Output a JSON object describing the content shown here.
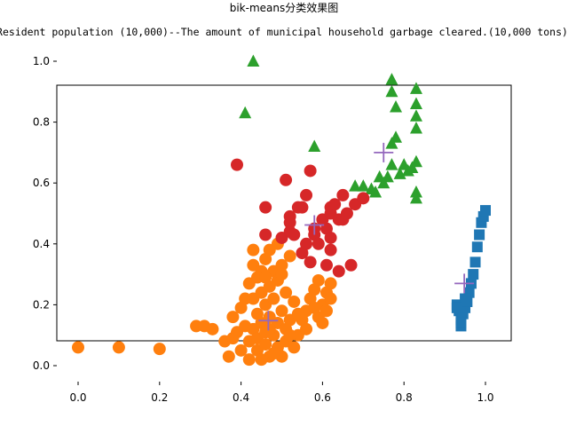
{
  "chart_data": {
    "type": "scatter",
    "title": "bik-means分类效果图",
    "subtitle": "Resident population (10,000)--The amount of municipal household garbage cleared.(10,000 tons)",
    "xlabel": "",
    "ylabel": "",
    "xlim": [
      -0.05,
      1.06
    ],
    "ylim": [
      -0.05,
      1.03
    ],
    "xticks": [
      "0.0",
      "0.2",
      "0.4",
      "0.6",
      "0.8",
      "1.0"
    ],
    "yticks": [
      "0.0",
      "0.2",
      "0.4",
      "0.6",
      "0.8",
      "1.0"
    ],
    "grid": false,
    "colors": {
      "blue": "#1f77b4",
      "orange": "#ff7f0e",
      "green": "#2ca02c",
      "red": "#d62728",
      "centroid": "#9467bd"
    },
    "series": [
      {
        "marker": "square",
        "color": "#1f77b4",
        "points": [
          [
            0.93,
            0.2
          ],
          [
            0.935,
            0.18
          ],
          [
            0.94,
            0.13
          ],
          [
            0.94,
            0.15
          ],
          [
            0.945,
            0.17
          ],
          [
            0.95,
            0.19
          ],
          [
            0.955,
            0.21
          ],
          [
            0.96,
            0.24
          ],
          [
            0.965,
            0.27
          ],
          [
            0.97,
            0.3
          ],
          [
            0.975,
            0.34
          ],
          [
            0.98,
            0.39
          ],
          [
            0.985,
            0.43
          ],
          [
            0.99,
            0.47
          ],
          [
            0.995,
            0.49
          ],
          [
            1.0,
            0.51
          ],
          [
            0.95,
            0.22
          ],
          [
            0.94,
            0.14
          ],
          [
            0.93,
            0.19
          ]
        ]
      },
      {
        "marker": "circle",
        "color": "#ff7f0e",
        "points": [
          [
            0.0,
            0.06
          ],
          [
            0.1,
            0.06
          ],
          [
            0.2,
            0.055
          ],
          [
            0.29,
            0.13
          ],
          [
            0.31,
            0.13
          ],
          [
            0.33,
            0.12
          ],
          [
            0.36,
            0.08
          ],
          [
            0.37,
            0.03
          ],
          [
            0.38,
            0.09
          ],
          [
            0.38,
            0.16
          ],
          [
            0.39,
            0.11
          ],
          [
            0.4,
            0.05
          ],
          [
            0.4,
            0.19
          ],
          [
            0.41,
            0.13
          ],
          [
            0.41,
            0.22
          ],
          [
            0.42,
            0.02
          ],
          [
            0.42,
            0.08
          ],
          [
            0.42,
            0.27
          ],
          [
            0.43,
            0.12
          ],
          [
            0.43,
            0.33
          ],
          [
            0.43,
            0.38
          ],
          [
            0.44,
            0.05
          ],
          [
            0.44,
            0.09
          ],
          [
            0.44,
            0.17
          ],
          [
            0.44,
            0.29
          ],
          [
            0.45,
            0.14
          ],
          [
            0.45,
            0.24
          ],
          [
            0.45,
            0.31
          ],
          [
            0.46,
            0.07
          ],
          [
            0.46,
            0.11
          ],
          [
            0.46,
            0.2
          ],
          [
            0.46,
            0.35
          ],
          [
            0.47,
            0.03
          ],
          [
            0.47,
            0.16
          ],
          [
            0.47,
            0.26
          ],
          [
            0.47,
            0.38
          ],
          [
            0.48,
            0.1
          ],
          [
            0.48,
            0.22
          ],
          [
            0.48,
            0.31
          ],
          [
            0.49,
            0.06
          ],
          [
            0.49,
            0.14
          ],
          [
            0.49,
            0.28
          ],
          [
            0.49,
            0.4
          ],
          [
            0.5,
            0.03
          ],
          [
            0.5,
            0.18
          ],
          [
            0.5,
            0.33
          ],
          [
            0.51,
            0.08
          ],
          [
            0.51,
            0.12
          ],
          [
            0.51,
            0.24
          ],
          [
            0.52,
            0.36
          ],
          [
            0.52,
            0.15
          ],
          [
            0.53,
            0.06
          ],
          [
            0.53,
            0.21
          ],
          [
            0.54,
            0.1
          ],
          [
            0.55,
            0.15
          ],
          [
            0.56,
            0.18
          ],
          [
            0.57,
            0.22
          ],
          [
            0.58,
            0.25
          ],
          [
            0.59,
            0.16
          ],
          [
            0.59,
            0.28
          ],
          [
            0.6,
            0.2
          ],
          [
            0.61,
            0.24
          ],
          [
            0.62,
            0.22
          ],
          [
            0.62,
            0.27
          ],
          [
            0.5,
            0.3
          ],
          [
            0.48,
            0.04
          ],
          [
            0.45,
            0.02
          ],
          [
            0.47,
            0.12
          ],
          [
            0.52,
            0.1
          ],
          [
            0.54,
            0.17
          ],
          [
            0.56,
            0.12
          ],
          [
            0.58,
            0.19
          ],
          [
            0.6,
            0.14
          ],
          [
            0.61,
            0.18
          ],
          [
            0.43,
            0.22
          ],
          [
            0.46,
            0.29
          ]
        ]
      },
      {
        "marker": "triangle",
        "color": "#2ca02c",
        "points": [
          [
            0.41,
            0.83
          ],
          [
            0.43,
            1.0
          ],
          [
            0.58,
            0.72
          ],
          [
            0.68,
            0.59
          ],
          [
            0.7,
            0.59
          ],
          [
            0.72,
            0.58
          ],
          [
            0.73,
            0.57
          ],
          [
            0.74,
            0.62
          ],
          [
            0.75,
            0.6
          ],
          [
            0.76,
            0.62
          ],
          [
            0.77,
            0.66
          ],
          [
            0.77,
            0.73
          ],
          [
            0.77,
            0.9
          ],
          [
            0.77,
            0.94
          ],
          [
            0.78,
            0.75
          ],
          [
            0.78,
            0.85
          ],
          [
            0.79,
            0.63
          ],
          [
            0.8,
            0.66
          ],
          [
            0.81,
            0.64
          ],
          [
            0.82,
            0.65
          ],
          [
            0.83,
            0.67
          ],
          [
            0.83,
            0.55
          ],
          [
            0.83,
            0.57
          ],
          [
            0.83,
            0.78
          ],
          [
            0.83,
            0.82
          ],
          [
            0.83,
            0.86
          ],
          [
            0.83,
            0.91
          ]
        ]
      },
      {
        "marker": "circle",
        "color": "#d62728",
        "points": [
          [
            0.39,
            0.66
          ],
          [
            0.46,
            0.43
          ],
          [
            0.46,
            0.52
          ],
          [
            0.5,
            0.42
          ],
          [
            0.51,
            0.61
          ],
          [
            0.52,
            0.44
          ],
          [
            0.52,
            0.47
          ],
          [
            0.52,
            0.49
          ],
          [
            0.53,
            0.43
          ],
          [
            0.54,
            0.52
          ],
          [
            0.55,
            0.52
          ],
          [
            0.55,
            0.37
          ],
          [
            0.56,
            0.56
          ],
          [
            0.56,
            0.4
          ],
          [
            0.57,
            0.34
          ],
          [
            0.57,
            0.64
          ],
          [
            0.58,
            0.43
          ],
          [
            0.58,
            0.45
          ],
          [
            0.59,
            0.4
          ],
          [
            0.6,
            0.48
          ],
          [
            0.61,
            0.45
          ],
          [
            0.61,
            0.33
          ],
          [
            0.62,
            0.5
          ],
          [
            0.62,
            0.52
          ],
          [
            0.62,
            0.42
          ],
          [
            0.63,
            0.53
          ],
          [
            0.64,
            0.48
          ],
          [
            0.64,
            0.31
          ],
          [
            0.65,
            0.48
          ],
          [
            0.65,
            0.56
          ],
          [
            0.66,
            0.5
          ],
          [
            0.67,
            0.33
          ],
          [
            0.68,
            0.53
          ],
          [
            0.7,
            0.55
          ],
          [
            0.62,
            0.38
          ]
        ]
      }
    ],
    "centroids": [
      [
        0.467,
        0.148
      ],
      [
        0.58,
        0.462
      ],
      [
        0.75,
        0.7
      ],
      [
        0.948,
        0.27
      ]
    ]
  }
}
